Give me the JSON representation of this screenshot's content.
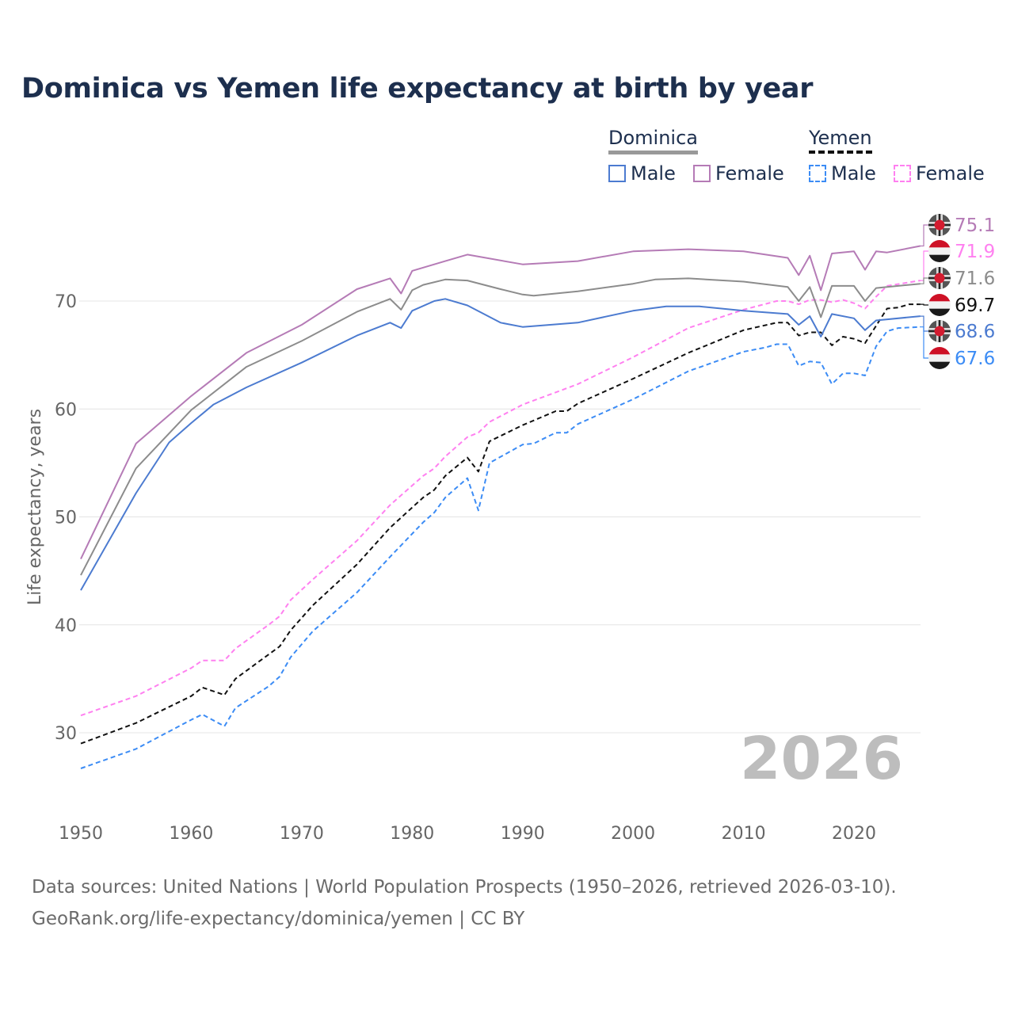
{
  "chart_data": {
    "type": "line",
    "title": "Dominica vs Yemen life expectancy at birth by year",
    "xlabel": "",
    "ylabel": "Life expectancy, years",
    "xlim": [
      1950,
      2026
    ],
    "ylim": [
      25,
      77
    ],
    "x_ticks": [
      "1950",
      "1960",
      "1970",
      "1980",
      "1990",
      "2000",
      "2010",
      "2020"
    ],
    "y_ticks": [
      "30",
      "40",
      "50",
      "60",
      "70"
    ],
    "grid": true,
    "year_watermark": "2026",
    "legend": {
      "groups": [
        {
          "name": "Dominica",
          "items": [
            "Male",
            "Female"
          ]
        },
        {
          "name": "Yemen",
          "items": [
            "Male",
            "Female"
          ]
        }
      ],
      "placement": "top-right"
    },
    "series": [
      {
        "name": "Dominica Female",
        "country": "Dominica",
        "color": "#b57bb6",
        "dashed": false,
        "end_label": "75.1",
        "x": [
          1950,
          1955,
          1960,
          1965,
          1970,
          1975,
          1978,
          1979,
          1980,
          1983,
          1985,
          1990,
          1995,
          2000,
          2005,
          2010,
          2014,
          2015,
          2016,
          2017,
          2018,
          2020,
          2021,
          2022,
          2023,
          2026
        ],
        "y": [
          46.1,
          56.8,
          61.2,
          65.2,
          67.8,
          71.1,
          72.1,
          70.7,
          72.8,
          73.7,
          74.3,
          73.4,
          73.7,
          74.6,
          74.8,
          74.6,
          74.0,
          72.4,
          74.2,
          71.0,
          74.4,
          74.6,
          72.9,
          74.6,
          74.5,
          75.1
        ]
      },
      {
        "name": "Yemen Female",
        "country": "Yemen",
        "color": "#ff80f0",
        "dashed": true,
        "end_label": "71.9",
        "x": [
          1950,
          1955,
          1960,
          1961,
          1963,
          1964,
          1967,
          1968,
          1969,
          1971,
          1975,
          1978,
          1981,
          1982,
          1983,
          1985,
          1986,
          1987,
          1990,
          1995,
          2000,
          2005,
          2010,
          2013,
          2014,
          2015,
          2016,
          2017,
          2018,
          2019,
          2020,
          2021,
          2022,
          2023,
          2026
        ],
        "y": [
          31.6,
          33.4,
          36.0,
          36.7,
          36.7,
          37.8,
          40.0,
          40.8,
          42.3,
          44.2,
          47.8,
          51.1,
          53.8,
          54.5,
          55.6,
          57.4,
          57.8,
          58.8,
          60.4,
          62.3,
          64.8,
          67.5,
          69.2,
          70.0,
          70.0,
          69.7,
          70.1,
          70.1,
          69.9,
          70.1,
          69.8,
          69.3,
          70.4,
          71.4,
          71.9
        ]
      },
      {
        "name": "Dominica",
        "country": "Dominica",
        "color": "#8c8c8c",
        "dashed": false,
        "end_label": "71.6",
        "x": [
          1950,
          1955,
          1960,
          1965,
          1970,
          1975,
          1978,
          1979,
          1980,
          1981,
          1983,
          1985,
          1988,
          1990,
          1991,
          1995,
          2000,
          2002,
          2005,
          2010,
          2014,
          2015,
          2016,
          2017,
          2018,
          2020,
          2021,
          2022,
          2026
        ],
        "y": [
          44.6,
          54.5,
          59.9,
          63.9,
          66.3,
          69.0,
          70.2,
          69.2,
          71.0,
          71.5,
          72.0,
          71.9,
          71.1,
          70.6,
          70.5,
          70.9,
          71.6,
          72.0,
          72.1,
          71.8,
          71.3,
          70.0,
          71.3,
          68.5,
          71.4,
          71.4,
          70.0,
          71.2,
          71.6
        ]
      },
      {
        "name": "Yemen",
        "country": "Yemen",
        "color": "#111111",
        "dashed": true,
        "end_label": "69.7",
        "x": [
          1950,
          1955,
          1960,
          1961,
          1963,
          1964,
          1966,
          1968,
          1969,
          1971,
          1975,
          1978,
          1981,
          1982,
          1983,
          1985,
          1986,
          1987,
          1990,
          1993,
          1994,
          1995,
          2000,
          2005,
          2010,
          2013,
          2014,
          2015,
          2016,
          2017,
          2018,
          2019,
          2020,
          2021,
          2022,
          2023,
          2024,
          2025,
          2026
        ],
        "y": [
          29.0,
          30.9,
          33.4,
          34.2,
          33.5,
          35.0,
          36.5,
          38.0,
          39.5,
          41.8,
          45.6,
          49.0,
          51.8,
          52.5,
          53.8,
          55.5,
          54.2,
          57.0,
          58.5,
          59.8,
          59.8,
          60.5,
          62.8,
          65.2,
          67.3,
          68.0,
          68.0,
          66.8,
          67.1,
          67.1,
          65.9,
          66.7,
          66.5,
          66.1,
          67.7,
          69.3,
          69.4,
          69.7,
          69.7
        ]
      },
      {
        "name": "Dominica Male",
        "country": "Dominica",
        "color": "#4c7bd0",
        "dashed": false,
        "end_label": "68.6",
        "x": [
          1950,
          1955,
          1958,
          1960,
          1962,
          1965,
          1970,
          1975,
          1978,
          1979,
          1980,
          1982,
          1983,
          1985,
          1988,
          1990,
          1995,
          2000,
          2003,
          2006,
          2010,
          2014,
          2015,
          2016,
          2017,
          2018,
          2020,
          2021,
          2022,
          2026
        ],
        "y": [
          43.2,
          52.2,
          56.9,
          58.7,
          60.4,
          62.0,
          64.3,
          66.8,
          68.0,
          67.5,
          69.1,
          70.0,
          70.2,
          69.6,
          68.0,
          67.6,
          68.0,
          69.1,
          69.5,
          69.5,
          69.1,
          68.8,
          67.8,
          68.6,
          66.7,
          68.8,
          68.4,
          67.3,
          68.2,
          68.6
        ]
      },
      {
        "name": "Yemen Male",
        "country": "Yemen",
        "color": "#3c8cf5",
        "dashed": true,
        "end_label": "67.6",
        "x": [
          1950,
          1955,
          1960,
          1961,
          1963,
          1964,
          1967,
          1968,
          1969,
          1971,
          1975,
          1978,
          1981,
          1982,
          1983,
          1985,
          1986,
          1987,
          1990,
          1991,
          1993,
          1994,
          1995,
          2000,
          2005,
          2010,
          2012,
          2013,
          2014,
          2015,
          2016,
          2017,
          2018,
          2019,
          2020,
          2021,
          2022,
          2023,
          2024,
          2026
        ],
        "y": [
          26.7,
          28.5,
          31.2,
          31.7,
          30.6,
          32.3,
          34.3,
          35.2,
          37.0,
          39.4,
          43.0,
          46.3,
          49.5,
          50.4,
          51.8,
          53.6,
          50.6,
          55.0,
          56.7,
          56.8,
          57.8,
          57.8,
          58.6,
          60.9,
          63.5,
          65.3,
          65.7,
          66.0,
          66.0,
          64.0,
          64.4,
          64.3,
          62.3,
          63.3,
          63.3,
          63.1,
          65.8,
          67.2,
          67.5,
          67.6
        ]
      }
    ]
  },
  "footer": {
    "line1": "Data sources: United Nations | World Population Prospects (1950–2026, retrieved 2026-03-10).",
    "line2": "GeoRank.org/life-expectancy/dominica/yemen | CC BY"
  }
}
